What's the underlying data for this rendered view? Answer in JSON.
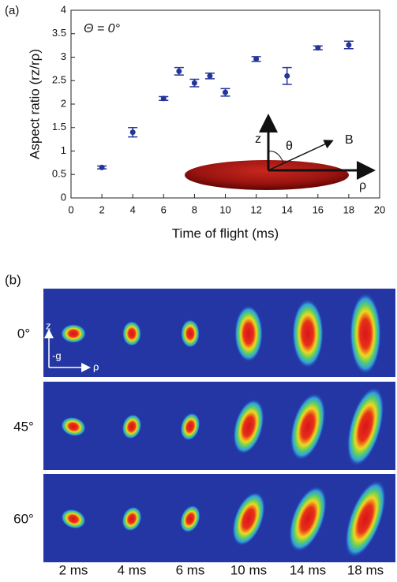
{
  "chart_data": {
    "type": "scatter",
    "panel_label": "(a)",
    "annotation": "Θ = 0°",
    "x_label": "Time of flight (ms)",
    "y_label": "Aspect ratio (rz/rρ)",
    "inset_labels": [
      "z",
      "θ",
      "B",
      "ρ"
    ],
    "x": [
      2,
      4,
      6,
      7,
      8,
      9,
      10,
      12,
      14,
      16,
      18
    ],
    "series": [
      {
        "color": "#24359a",
        "values": [
          0.65,
          1.4,
          2.12,
          2.7,
          2.45,
          2.6,
          2.25,
          2.96,
          2.6,
          3.2,
          3.26
        ],
        "errors": [
          0.03,
          0.1,
          0.04,
          0.08,
          0.08,
          0.06,
          0.08,
          0.05,
          0.18,
          0.04,
          0.08
        ]
      }
    ],
    "xlim": [
      0,
      20
    ],
    "xticks": [
      0,
      2,
      4,
      6,
      8,
      10,
      12,
      14,
      16,
      18,
      20
    ],
    "ylim": [
      0,
      4
    ],
    "yticks": [
      0,
      0.5,
      1,
      1.5,
      2,
      2.5,
      3,
      3.5,
      4
    ]
  },
  "panel_b": {
    "panel_label": "(b)",
    "rows": [
      "0°",
      "45°",
      "60°"
    ],
    "columns": [
      "2 ms",
      "4 ms",
      "6 ms",
      "10 ms",
      "14 ms",
      "18 ms"
    ],
    "axis_labels": [
      "z",
      "-g",
      "ρ"
    ]
  }
}
